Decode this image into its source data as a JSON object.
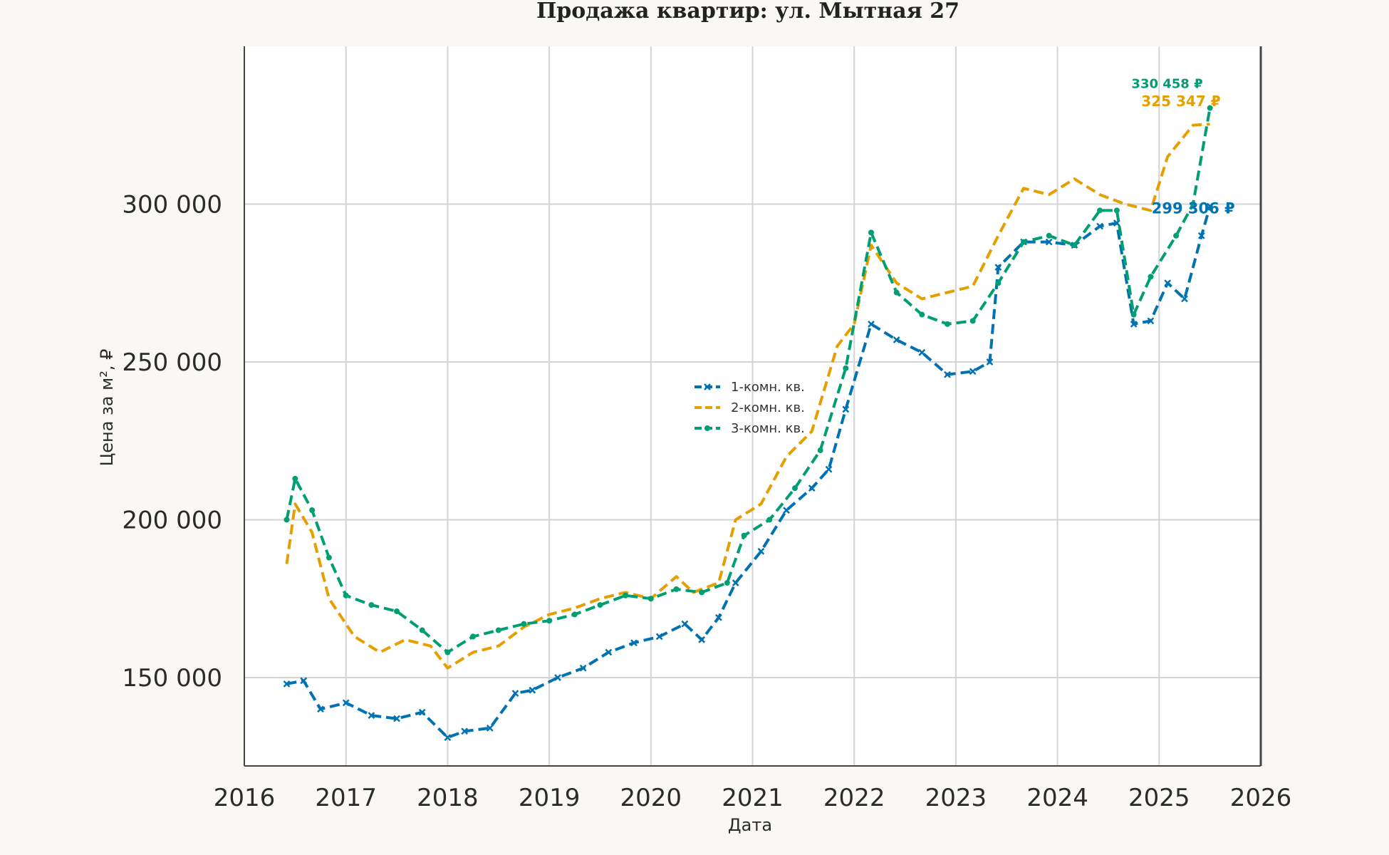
{
  "chart_data": {
    "type": "line",
    "title": "Продажа квартир: ул. Мытная 27",
    "xlabel": "Дата",
    "ylabel": "Цена за м², ₽",
    "xlim": [
      "2016-01-01",
      "2026-01-01"
    ],
    "ylim": [
      122000,
      350000
    ],
    "x_ticks": [
      "2016",
      "2017",
      "2018",
      "2019",
      "2020",
      "2021",
      "2022",
      "2023",
      "2024",
      "2025",
      "2026"
    ],
    "y_ticks": [
      {
        "value": 150000,
        "label": "150 000"
      },
      {
        "value": 200000,
        "label": "200 000"
      },
      {
        "value": 250000,
        "label": "250 000"
      },
      {
        "value": 300000,
        "label": "300 000"
      }
    ],
    "grid": true,
    "legend": {
      "placement": "center"
    },
    "series": [
      {
        "name": "1-комн. кв.",
        "color": "#0072b2",
        "style": "dashed",
        "marker": "x",
        "end_label": "299 306 ₽",
        "points": [
          [
            "2016-06",
            148000
          ],
          [
            "2016-08",
            149000
          ],
          [
            "2016-10",
            140000
          ],
          [
            "2017-01",
            142000
          ],
          [
            "2017-04",
            138000
          ],
          [
            "2017-07",
            137000
          ],
          [
            "2017-10",
            139000
          ],
          [
            "2018-01",
            131000
          ],
          [
            "2018-03",
            133000
          ],
          [
            "2018-06",
            134000
          ],
          [
            "2018-09",
            145000
          ],
          [
            "2018-11",
            146000
          ],
          [
            "2019-02",
            150000
          ],
          [
            "2019-05",
            153000
          ],
          [
            "2019-08",
            158000
          ],
          [
            "2019-11",
            161000
          ],
          [
            "2020-02",
            163000
          ],
          [
            "2020-05",
            167000
          ],
          [
            "2020-07",
            162000
          ],
          [
            "2020-09",
            169000
          ],
          [
            "2020-11",
            180000
          ],
          [
            "2021-02",
            190000
          ],
          [
            "2021-05",
            203000
          ],
          [
            "2021-08",
            210000
          ],
          [
            "2021-10",
            216000
          ],
          [
            "2021-12",
            235000
          ],
          [
            "2022-03",
            262000
          ],
          [
            "2022-06",
            257000
          ],
          [
            "2022-09",
            253000
          ],
          [
            "2022-12",
            246000
          ],
          [
            "2023-03",
            247000
          ],
          [
            "2023-05",
            250000
          ],
          [
            "2023-06",
            280000
          ],
          [
            "2023-09",
            288000
          ],
          [
            "2023-12",
            288000
          ],
          [
            "2024-03",
            287000
          ],
          [
            "2024-06",
            293000
          ],
          [
            "2024-08",
            294000
          ],
          [
            "2024-10",
            262000
          ],
          [
            "2024-12",
            263000
          ],
          [
            "2025-02",
            275000
          ],
          [
            "2025-04",
            270000
          ],
          [
            "2025-06",
            290000
          ],
          [
            "2025-07",
            299306
          ]
        ]
      },
      {
        "name": "2-комн. кв.",
        "color": "#e69f00",
        "style": "dashed",
        "marker": "none",
        "end_label": "325 347 ₽",
        "points": [
          [
            "2016-06",
            186000
          ],
          [
            "2016-07",
            205000
          ],
          [
            "2016-09",
            196000
          ],
          [
            "2016-11",
            175000
          ],
          [
            "2017-02",
            163000
          ],
          [
            "2017-05",
            158000
          ],
          [
            "2017-08",
            162000
          ],
          [
            "2017-11",
            160000
          ],
          [
            "2018-01",
            153000
          ],
          [
            "2018-04",
            158000
          ],
          [
            "2018-07",
            160000
          ],
          [
            "2018-10",
            166000
          ],
          [
            "2019-01",
            170000
          ],
          [
            "2019-04",
            172000
          ],
          [
            "2019-07",
            175000
          ],
          [
            "2019-10",
            177000
          ],
          [
            "2020-01",
            175000
          ],
          [
            "2020-04",
            182000
          ],
          [
            "2020-06",
            177000
          ],
          [
            "2020-09",
            180000
          ],
          [
            "2020-11",
            200000
          ],
          [
            "2021-02",
            205000
          ],
          [
            "2021-05",
            220000
          ],
          [
            "2021-08",
            228000
          ],
          [
            "2021-11",
            255000
          ],
          [
            "2022-01",
            262000
          ],
          [
            "2022-03",
            287000
          ],
          [
            "2022-06",
            275000
          ],
          [
            "2022-09",
            270000
          ],
          [
            "2022-12",
            272000
          ],
          [
            "2023-03",
            274000
          ],
          [
            "2023-06",
            290000
          ],
          [
            "2023-09",
            305000
          ],
          [
            "2023-12",
            303000
          ],
          [
            "2024-03",
            308000
          ],
          [
            "2024-06",
            303000
          ],
          [
            "2024-09",
            300000
          ],
          [
            "2024-12",
            298000
          ],
          [
            "2025-02",
            315000
          ],
          [
            "2025-05",
            325000
          ],
          [
            "2025-07",
            325347
          ]
        ]
      },
      {
        "name": "3-комн. кв.",
        "color": "#009e73",
        "style": "dashed",
        "marker": "dot",
        "end_label": "330 458 ₽",
        "points": [
          [
            "2016-06",
            200000
          ],
          [
            "2016-07",
            213000
          ],
          [
            "2016-09",
            203000
          ],
          [
            "2016-11",
            188000
          ],
          [
            "2017-01",
            176000
          ],
          [
            "2017-04",
            173000
          ],
          [
            "2017-07",
            171000
          ],
          [
            "2017-10",
            165000
          ],
          [
            "2018-01",
            158000
          ],
          [
            "2018-04",
            163000
          ],
          [
            "2018-07",
            165000
          ],
          [
            "2018-10",
            167000
          ],
          [
            "2019-01",
            168000
          ],
          [
            "2019-04",
            170000
          ],
          [
            "2019-07",
            173000
          ],
          [
            "2019-10",
            176000
          ],
          [
            "2020-01",
            175000
          ],
          [
            "2020-04",
            178000
          ],
          [
            "2020-07",
            177000
          ],
          [
            "2020-10",
            180000
          ],
          [
            "2020-12",
            195000
          ],
          [
            "2021-03",
            200000
          ],
          [
            "2021-06",
            210000
          ],
          [
            "2021-09",
            222000
          ],
          [
            "2021-12",
            248000
          ],
          [
            "2022-03",
            291000
          ],
          [
            "2022-06",
            272000
          ],
          [
            "2022-09",
            265000
          ],
          [
            "2022-12",
            262000
          ],
          [
            "2023-03",
            263000
          ],
          [
            "2023-06",
            275000
          ],
          [
            "2023-09",
            288000
          ],
          [
            "2023-12",
            290000
          ],
          [
            "2024-03",
            287000
          ],
          [
            "2024-06",
            298000
          ],
          [
            "2024-08",
            298000
          ],
          [
            "2024-10",
            265000
          ],
          [
            "2024-12",
            277000
          ],
          [
            "2025-03",
            290000
          ],
          [
            "2025-05",
            300000
          ],
          [
            "2025-07",
            330458
          ]
        ]
      }
    ]
  }
}
